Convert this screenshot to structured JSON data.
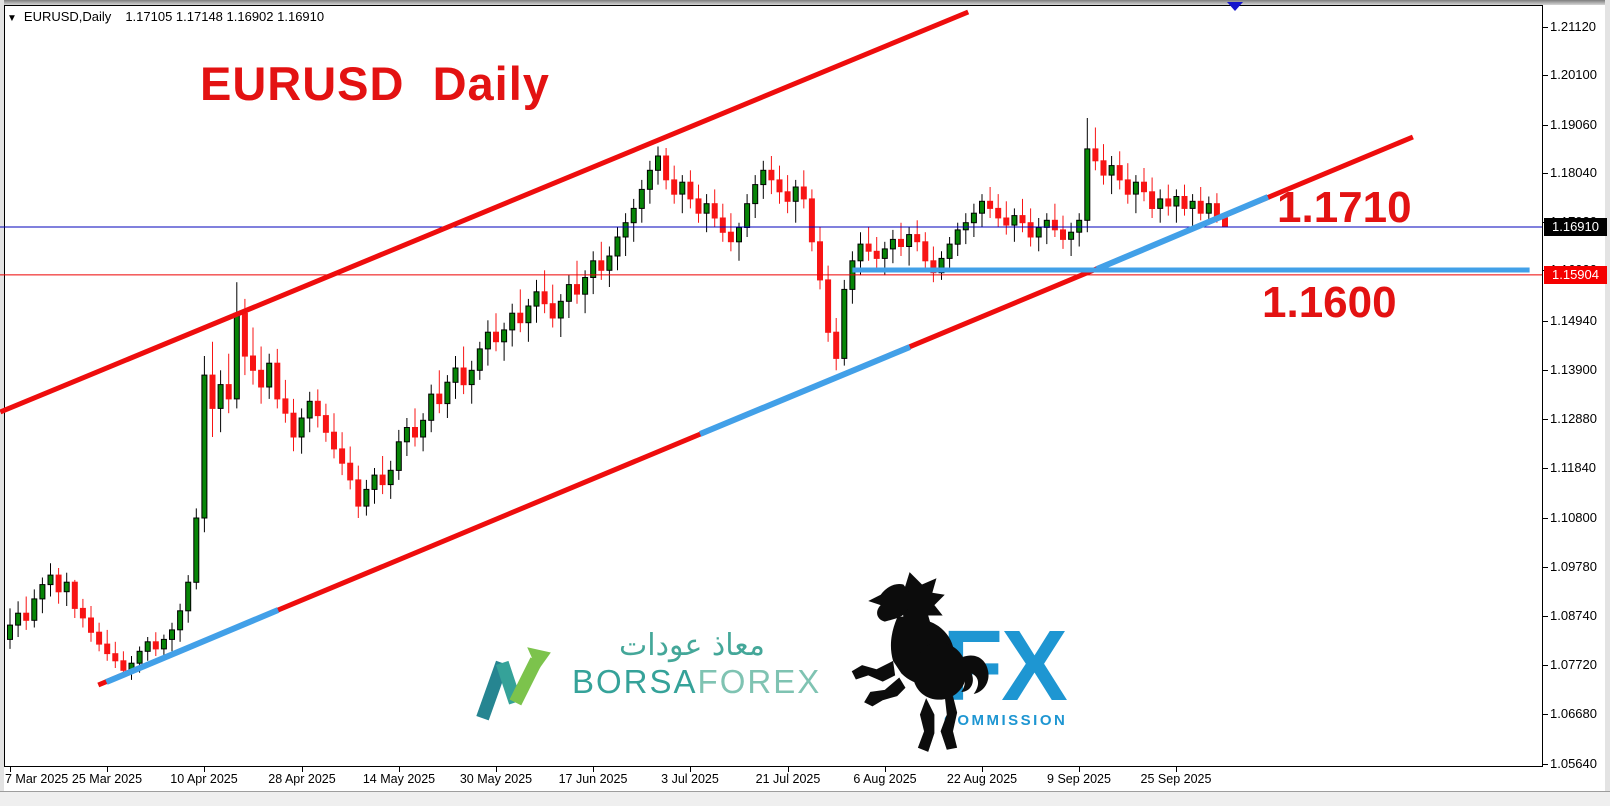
{
  "header": {
    "dropdown_icon": "▼",
    "symbol": "EURUSD,Daily",
    "quote_line": "1.17105 1.17148 1.16902 1.16910"
  },
  "annotations": {
    "title": "EURUSD  Daily",
    "resistance_label": "1.1710",
    "support_label": "1.1600"
  },
  "price_tags": {
    "current": {
      "value": "1.16910",
      "bg": "#000000"
    },
    "support": {
      "value": "1.15904",
      "bg": "#f50000"
    }
  },
  "logos": {
    "borsaforex": {
      "arabic": "معاذ عودات",
      "name_part1": "BORSA",
      "name_part2": "FOREX"
    },
    "fx_commission": {
      "fx": "FX",
      "commission": "COMMISSION"
    }
  },
  "colors": {
    "bull": "#078507",
    "bear": "#f81414",
    "channel_red": "#ee0d0d",
    "trend_blue": "#42a0e8",
    "hline_blue": "#0000bb",
    "hline_red": "#ee0000",
    "annotation_red": "#e31212"
  },
  "chart_data": {
    "type": "candlestick",
    "symbol": "EURUSD",
    "timeframe": "Daily",
    "last_ohlc": {
      "open": 1.17105,
      "high": 1.17148,
      "low": 1.16902,
      "close": 1.1691
    },
    "y_axis_ticks": [
      1.2112,
      1.201,
      1.1906,
      1.1804,
      1.1702,
      1.16,
      1.1494,
      1.139,
      1.1288,
      1.1184,
      1.108,
      1.0978,
      1.0874,
      1.0772,
      1.0668,
      1.0564
    ],
    "x_axis_labels": [
      {
        "label": "7 Mar 2025",
        "bar": 0
      },
      {
        "label": "25 Mar 2025",
        "bar": 12
      },
      {
        "label": "10 Apr 2025",
        "bar": 24
      },
      {
        "label": "28 Apr 2025",
        "bar": 36
      },
      {
        "label": "14 May 2025",
        "bar": 48
      },
      {
        "label": "30 May 2025",
        "bar": 60
      },
      {
        "label": "17 Jun 2025",
        "bar": 72
      },
      {
        "label": "3 Jul 2025",
        "bar": 84
      },
      {
        "label": "21 Jul 2025",
        "bar": 96
      },
      {
        "label": "6 Aug 2025",
        "bar": 108
      },
      {
        "label": "22 Aug 2025",
        "bar": 120
      },
      {
        "label": "9 Sep 2025",
        "bar": 132
      },
      {
        "label": "25 Sep 2025",
        "bar": 144
      }
    ],
    "hlines": [
      {
        "price": 1.1691,
        "color": "#0000bb",
        "width": 1,
        "name": "current-price-line"
      },
      {
        "price": 1.15904,
        "color": "#ee0000",
        "width": 1,
        "name": "support-price-line"
      }
    ],
    "segments": [
      {
        "name": "upper-channel-line",
        "color": "#ee0d0d",
        "width": 5,
        "p1": {
          "bar": -1.2,
          "price": 1.13025
        },
        "p2": {
          "bar": 118.3,
          "price": 1.21425
        }
      },
      {
        "name": "lower-channel-line",
        "color": "#ee0d0d",
        "width": 5,
        "p1": {
          "bar": 10.9,
          "price": 1.07292
        },
        "p2": {
          "bar": 173.2,
          "price": 1.188
        }
      },
      {
        "name": "blue-trend-segment-1",
        "color": "#42a0e8",
        "width": 6,
        "p1": {
          "bar": 11.9,
          "price": 1.07355
        },
        "p2": {
          "bar": 33.1,
          "price": 1.08867
        }
      },
      {
        "name": "blue-trend-segment-2",
        "color": "#42a0e8",
        "width": 6,
        "p1": {
          "bar": 85.2,
          "price": 1.12563
        },
        "p2": {
          "bar": 111.1,
          "price": 1.1439
        }
      },
      {
        "name": "blue-trend-segment-3",
        "color": "#42a0e8",
        "width": 6,
        "p1": {
          "bar": 134.2,
          "price": 1.16028
        },
        "p2": {
          "bar": 155.3,
          "price": 1.1754
        }
      },
      {
        "name": "blue-horizontal-support",
        "color": "#42a0e8",
        "width": 5,
        "p1": {
          "bar": 104.0,
          "price": 1.16007
        },
        "p2": {
          "bar": 187.6,
          "price": 1.16007
        }
      }
    ],
    "candles": [
      [
        1.0825,
        1.089,
        1.0805,
        1.0855
      ],
      [
        1.0855,
        1.0905,
        1.083,
        1.088
      ],
      [
        1.088,
        1.0915,
        1.0845,
        1.0865
      ],
      [
        1.0865,
        1.093,
        1.085,
        1.091
      ],
      [
        1.091,
        1.0955,
        1.088,
        1.094
      ],
      [
        1.094,
        1.0985,
        1.0915,
        1.096
      ],
      [
        1.096,
        1.0975,
        1.09,
        1.0925
      ],
      [
        1.0925,
        1.0965,
        1.0895,
        1.0945
      ],
      [
        1.0945,
        1.095,
        1.087,
        1.089
      ],
      [
        1.089,
        1.091,
        1.085,
        1.087
      ],
      [
        1.087,
        1.0895,
        1.082,
        1.084
      ],
      [
        1.084,
        1.086,
        1.08,
        1.0815
      ],
      [
        1.0815,
        1.0845,
        1.078,
        1.0795
      ],
      [
        1.0795,
        1.082,
        1.0765,
        1.078
      ],
      [
        1.078,
        1.08,
        1.0745,
        1.076
      ],
      [
        1.076,
        1.079,
        1.074,
        1.0775
      ],
      [
        1.0775,
        1.081,
        1.0755,
        1.08
      ],
      [
        1.08,
        1.083,
        1.078,
        1.082
      ],
      [
        1.082,
        1.084,
        1.079,
        1.0805
      ],
      [
        1.0805,
        1.0835,
        1.0785,
        1.0825
      ],
      [
        1.0825,
        1.086,
        1.08,
        1.0845
      ],
      [
        1.0845,
        1.09,
        1.082,
        1.0885
      ],
      [
        1.0885,
        1.096,
        1.086,
        1.0945
      ],
      [
        1.0945,
        1.11,
        1.093,
        1.108
      ],
      [
        1.108,
        1.142,
        1.105,
        1.138
      ],
      [
        1.138,
        1.145,
        1.125,
        1.131
      ],
      [
        1.131,
        1.139,
        1.126,
        1.136
      ],
      [
        1.136,
        1.1425,
        1.13,
        1.133
      ],
      [
        1.133,
        1.1575,
        1.131,
        1.151
      ],
      [
        1.151,
        1.154,
        1.138,
        1.142
      ],
      [
        1.142,
        1.148,
        1.136,
        1.139
      ],
      [
        1.139,
        1.144,
        1.132,
        1.1355
      ],
      [
        1.1355,
        1.1425,
        1.133,
        1.1405
      ],
      [
        1.1405,
        1.1435,
        1.131,
        1.133
      ],
      [
        1.133,
        1.137,
        1.128,
        1.13
      ],
      [
        1.13,
        1.133,
        1.122,
        1.125
      ],
      [
        1.125,
        1.131,
        1.1215,
        1.129
      ],
      [
        1.129,
        1.1345,
        1.126,
        1.1325
      ],
      [
        1.1325,
        1.135,
        1.127,
        1.1295
      ],
      [
        1.1295,
        1.132,
        1.124,
        1.126
      ],
      [
        1.126,
        1.13,
        1.1205,
        1.1225
      ],
      [
        1.1225,
        1.126,
        1.117,
        1.1195
      ],
      [
        1.1195,
        1.123,
        1.114,
        1.116
      ],
      [
        1.116,
        1.119,
        1.108,
        1.1105
      ],
      [
        1.1105,
        1.116,
        1.1085,
        1.114
      ],
      [
        1.114,
        1.1185,
        1.111,
        1.117
      ],
      [
        1.117,
        1.121,
        1.113,
        1.115
      ],
      [
        1.115,
        1.12,
        1.112,
        1.118
      ],
      [
        1.118,
        1.1265,
        1.116,
        1.124
      ],
      [
        1.124,
        1.129,
        1.121,
        1.127
      ],
      [
        1.127,
        1.131,
        1.123,
        1.125
      ],
      [
        1.125,
        1.13,
        1.122,
        1.1285
      ],
      [
        1.1285,
        1.136,
        1.126,
        1.134
      ],
      [
        1.134,
        1.139,
        1.13,
        1.132
      ],
      [
        1.132,
        1.138,
        1.129,
        1.1365
      ],
      [
        1.1365,
        1.142,
        1.133,
        1.1395
      ],
      [
        1.1395,
        1.144,
        1.134,
        1.136
      ],
      [
        1.136,
        1.141,
        1.132,
        1.139
      ],
      [
        1.139,
        1.145,
        1.137,
        1.1435
      ],
      [
        1.1435,
        1.1495,
        1.14,
        1.147
      ],
      [
        1.147,
        1.151,
        1.143,
        1.145
      ],
      [
        1.145,
        1.149,
        1.141,
        1.1475
      ],
      [
        1.1475,
        1.153,
        1.144,
        1.151
      ],
      [
        1.151,
        1.156,
        1.147,
        1.149
      ],
      [
        1.149,
        1.154,
        1.145,
        1.1525
      ],
      [
        1.1525,
        1.158,
        1.149,
        1.1555
      ],
      [
        1.1555,
        1.16,
        1.151,
        1.153
      ],
      [
        1.153,
        1.157,
        1.148,
        1.15
      ],
      [
        1.15,
        1.155,
        1.146,
        1.1535
      ],
      [
        1.1535,
        1.159,
        1.15,
        1.157
      ],
      [
        1.157,
        1.162,
        1.153,
        1.155
      ],
      [
        1.155,
        1.16,
        1.151,
        1.1585
      ],
      [
        1.1585,
        1.164,
        1.155,
        1.162
      ],
      [
        1.162,
        1.166,
        1.158,
        1.16
      ],
      [
        1.16,
        1.165,
        1.1565,
        1.163
      ],
      [
        1.163,
        1.169,
        1.16,
        1.167
      ],
      [
        1.167,
        1.172,
        1.163,
        1.17
      ],
      [
        1.17,
        1.175,
        1.166,
        1.173
      ],
      [
        1.173,
        1.179,
        1.17,
        1.177
      ],
      [
        1.177,
        1.183,
        1.174,
        1.181
      ],
      [
        1.181,
        1.186,
        1.178,
        1.184
      ],
      [
        1.184,
        1.1857,
        1.177,
        1.179
      ],
      [
        1.179,
        1.182,
        1.174,
        1.176
      ],
      [
        1.176,
        1.18,
        1.172,
        1.1785
      ],
      [
        1.1785,
        1.181,
        1.173,
        1.175
      ],
      [
        1.175,
        1.178,
        1.17,
        1.172
      ],
      [
        1.172,
        1.176,
        1.168,
        1.174
      ],
      [
        1.174,
        1.177,
        1.169,
        1.171
      ],
      [
        1.171,
        1.174,
        1.166,
        1.168
      ],
      [
        1.168,
        1.172,
        1.164,
        1.166
      ],
      [
        1.166,
        1.17,
        1.162,
        1.169
      ],
      [
        1.169,
        1.176,
        1.167,
        1.174
      ],
      [
        1.174,
        1.18,
        1.171,
        1.178
      ],
      [
        1.178,
        1.183,
        1.175,
        1.181
      ],
      [
        1.181,
        1.184,
        1.176,
        1.179
      ],
      [
        1.179,
        1.182,
        1.174,
        1.1765
      ],
      [
        1.1765,
        1.18,
        1.172,
        1.1745
      ],
      [
        1.1745,
        1.179,
        1.17,
        1.1775
      ],
      [
        1.1775,
        1.181,
        1.173,
        1.175
      ],
      [
        1.175,
        1.177,
        1.164,
        1.166
      ],
      [
        1.166,
        1.169,
        1.156,
        1.158
      ],
      [
        1.158,
        1.161,
        1.145,
        1.147
      ],
      [
        1.147,
        1.15,
        1.139,
        1.1415
      ],
      [
        1.1415,
        1.158,
        1.14,
        1.156
      ],
      [
        1.156,
        1.164,
        1.153,
        1.162
      ],
      [
        1.162,
        1.168,
        1.159,
        1.1655
      ],
      [
        1.1655,
        1.169,
        1.162,
        1.164
      ],
      [
        1.164,
        1.167,
        1.16,
        1.1625
      ],
      [
        1.1625,
        1.166,
        1.159,
        1.1645
      ],
      [
        1.1645,
        1.1685,
        1.1615,
        1.1665
      ],
      [
        1.1665,
        1.17,
        1.163,
        1.165
      ],
      [
        1.165,
        1.169,
        1.161,
        1.1675
      ],
      [
        1.1675,
        1.1705,
        1.164,
        1.166
      ],
      [
        1.166,
        1.168,
        1.16,
        1.162
      ],
      [
        1.162,
        1.165,
        1.1575,
        1.1595
      ],
      [
        1.1595,
        1.164,
        1.158,
        1.1625
      ],
      [
        1.1625,
        1.167,
        1.1605,
        1.1655
      ],
      [
        1.1655,
        1.17,
        1.163,
        1.1685
      ],
      [
        1.1685,
        1.172,
        1.1655,
        1.17
      ],
      [
        1.17,
        1.174,
        1.167,
        1.172
      ],
      [
        1.172,
        1.176,
        1.169,
        1.1745
      ],
      [
        1.1745,
        1.1775,
        1.171,
        1.173
      ],
      [
        1.173,
        1.176,
        1.169,
        1.171
      ],
      [
        1.171,
        1.1745,
        1.1675,
        1.1695
      ],
      [
        1.1695,
        1.173,
        1.166,
        1.1715
      ],
      [
        1.1715,
        1.175,
        1.168,
        1.17
      ],
      [
        1.17,
        1.173,
        1.165,
        1.167
      ],
      [
        1.167,
        1.171,
        1.164,
        1.169
      ],
      [
        1.169,
        1.172,
        1.1655,
        1.1705
      ],
      [
        1.1705,
        1.174,
        1.167,
        1.1685
      ],
      [
        1.1685,
        1.1715,
        1.1645,
        1.1665
      ],
      [
        1.1665,
        1.17,
        1.163,
        1.168
      ],
      [
        1.168,
        1.172,
        1.165,
        1.1705
      ],
      [
        1.1705,
        1.192,
        1.168,
        1.1855
      ],
      [
        1.1855,
        1.19,
        1.181,
        1.183
      ],
      [
        1.183,
        1.1865,
        1.178,
        1.18
      ],
      [
        1.18,
        1.184,
        1.176,
        1.182
      ],
      [
        1.182,
        1.185,
        1.177,
        1.179
      ],
      [
        1.179,
        1.1825,
        1.174,
        1.176
      ],
      [
        1.176,
        1.18,
        1.172,
        1.1785
      ],
      [
        1.1785,
        1.1815,
        1.1745,
        1.1765
      ],
      [
        1.1765,
        1.1795,
        1.171,
        1.173
      ],
      [
        1.173,
        1.177,
        1.17,
        1.175
      ],
      [
        1.175,
        1.178,
        1.1715,
        1.1735
      ],
      [
        1.1735,
        1.177,
        1.17,
        1.1755
      ],
      [
        1.1755,
        1.178,
        1.1715,
        1.173
      ],
      [
        1.173,
        1.176,
        1.169,
        1.1745
      ],
      [
        1.1745,
        1.1775,
        1.1705,
        1.172
      ],
      [
        1.172,
        1.1755,
        1.1695,
        1.174
      ],
      [
        1.174,
        1.1762,
        1.17,
        1.1712
      ],
      [
        1.17105,
        1.17148,
        1.16902,
        1.1691
      ]
    ]
  }
}
